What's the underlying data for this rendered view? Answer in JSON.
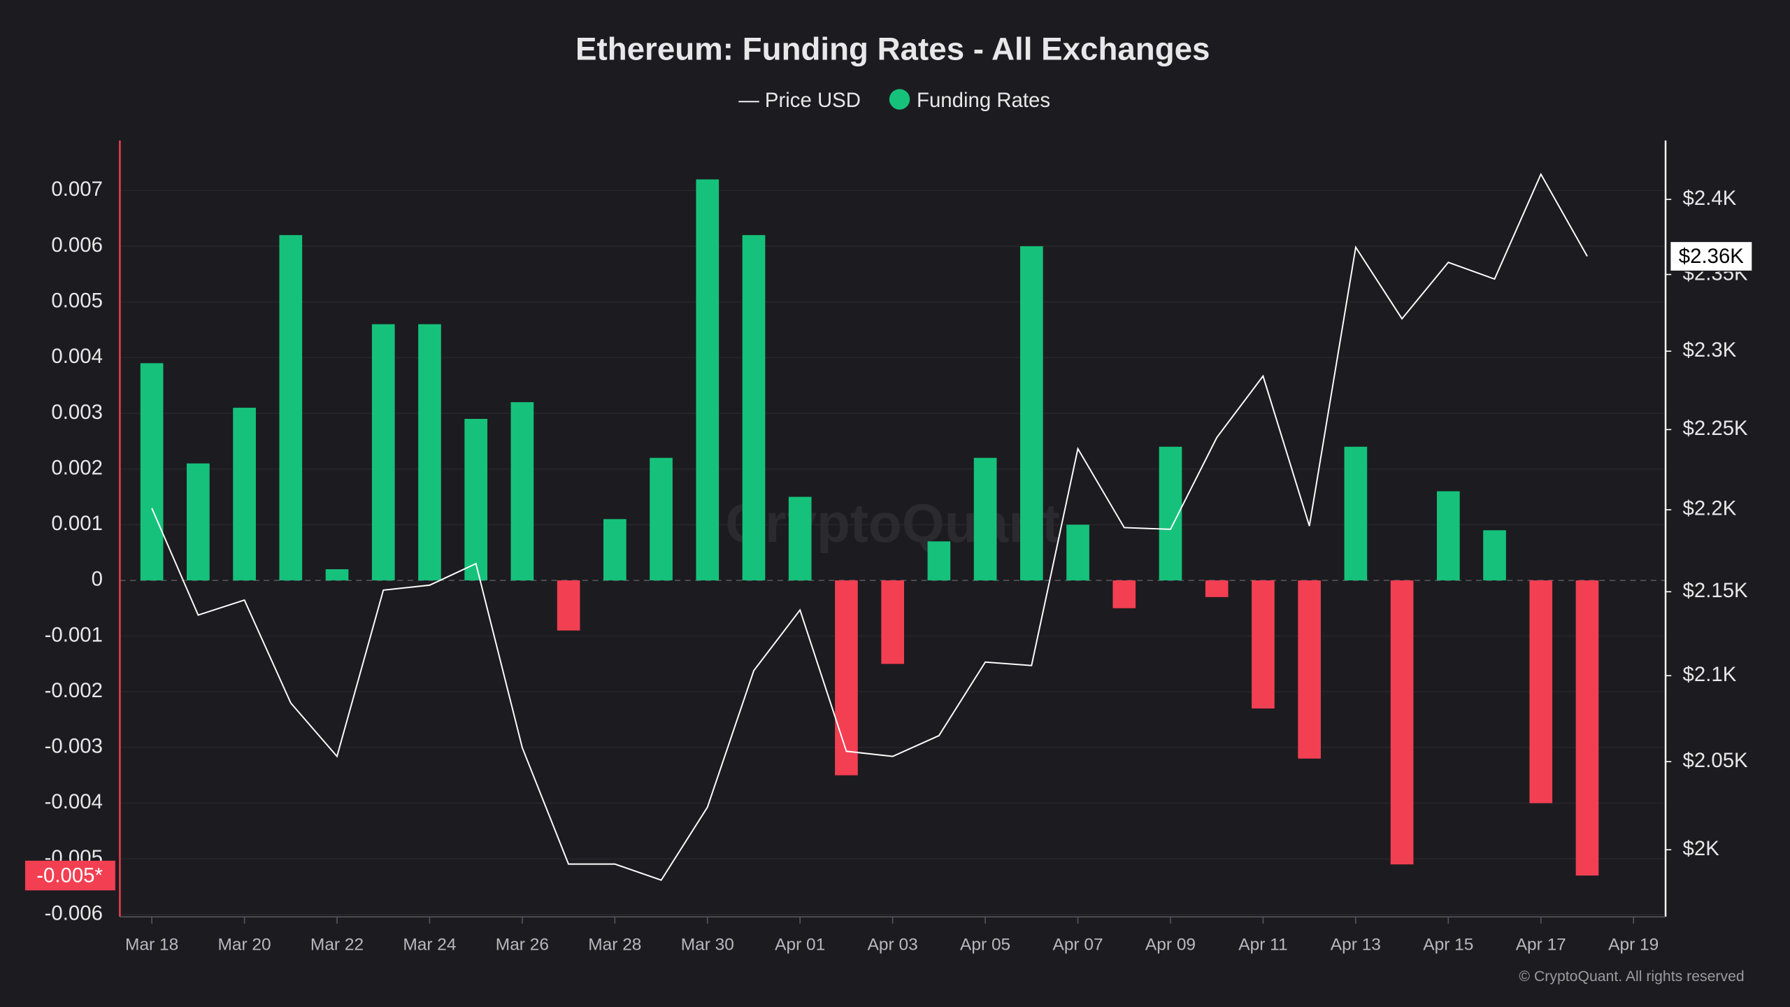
{
  "chart_data": {
    "type": "bar-line",
    "title": "Ethereum: Funding Rates - All Exchanges",
    "watermark": "CryptoQuant",
    "footer": "© CryptoQuant. All rights reserved",
    "categories": [
      "Mar 18",
      null,
      "Mar 20",
      null,
      "Mar 22",
      null,
      "Mar 24",
      null,
      "Mar 26",
      null,
      "Mar 28",
      null,
      "Mar 30",
      null,
      "Apr 01",
      null,
      "Apr 03",
      null,
      "Apr 05",
      null,
      "Apr 07",
      null,
      "Apr 09",
      null,
      "Apr 11",
      null,
      "Apr 13",
      null,
      "Apr 15",
      null,
      "Apr 17",
      null,
      "Apr 19"
    ],
    "series": [
      {
        "name": "Price USD",
        "type": "line",
        "axis": "y2",
        "color": "#ffffff",
        "last_label": "$2.36K",
        "values": [
          2201,
          2136,
          2145,
          2084,
          2053,
          2151,
          2154,
          2167,
          2058,
          1992,
          1992,
          1983,
          2024,
          2103,
          2139,
          2056,
          2053,
          2065,
          2108,
          2106,
          2238,
          2189,
          2188,
          2245,
          2284,
          2190,
          2368,
          2321,
          2358,
          2347,
          2417,
          2362,
          null
        ]
      },
      {
        "name": "Funding Rates",
        "type": "bar",
        "color": "#16c27b",
        "negative_color": "#f23f52",
        "last_label": "-0.005*",
        "values": [
          0.0039,
          0.0021,
          0.0031,
          0.0062,
          0.0002,
          0.0046,
          0.0046,
          0.0029,
          0.0032,
          -0.0009,
          0.0011,
          0.0022,
          0.0072,
          0.0062,
          0.0015,
          -0.0035,
          -0.0015,
          0.0007,
          0.0022,
          0.006,
          0.001,
          -0.0005,
          0.0024,
          -0.0003,
          -0.0023,
          -0.0032,
          0.0024,
          -0.0051,
          0.0016,
          0.0009,
          -0.004,
          -0.0053,
          null
        ]
      }
    ],
    "ylim": [
      -0.006,
      0.0079
    ],
    "yticks": [
      0.007,
      0.006,
      0.005,
      0.004,
      0.003,
      0.002,
      0.001,
      0,
      -0.001,
      -0.002,
      -0.003,
      -0.004,
      -0.005,
      -0.006
    ],
    "y2lim": [
      1964,
      2440
    ],
    "y2log": true,
    "y2ticks": [
      {
        "value": 2400,
        "label": "$2.4K"
      },
      {
        "value": 2350,
        "label": "$2.35K"
      },
      {
        "value": 2300,
        "label": "$2.3K"
      },
      {
        "value": 2250,
        "label": "$2.25K"
      },
      {
        "value": 2200,
        "label": "$2.2K"
      },
      {
        "value": 2150,
        "label": "$2.15K"
      },
      {
        "value": 2100,
        "label": "$2.1K"
      },
      {
        "value": 2050,
        "label": "$2.05K"
      },
      {
        "value": 2000,
        "label": "$2K"
      }
    ],
    "grid": true
  }
}
